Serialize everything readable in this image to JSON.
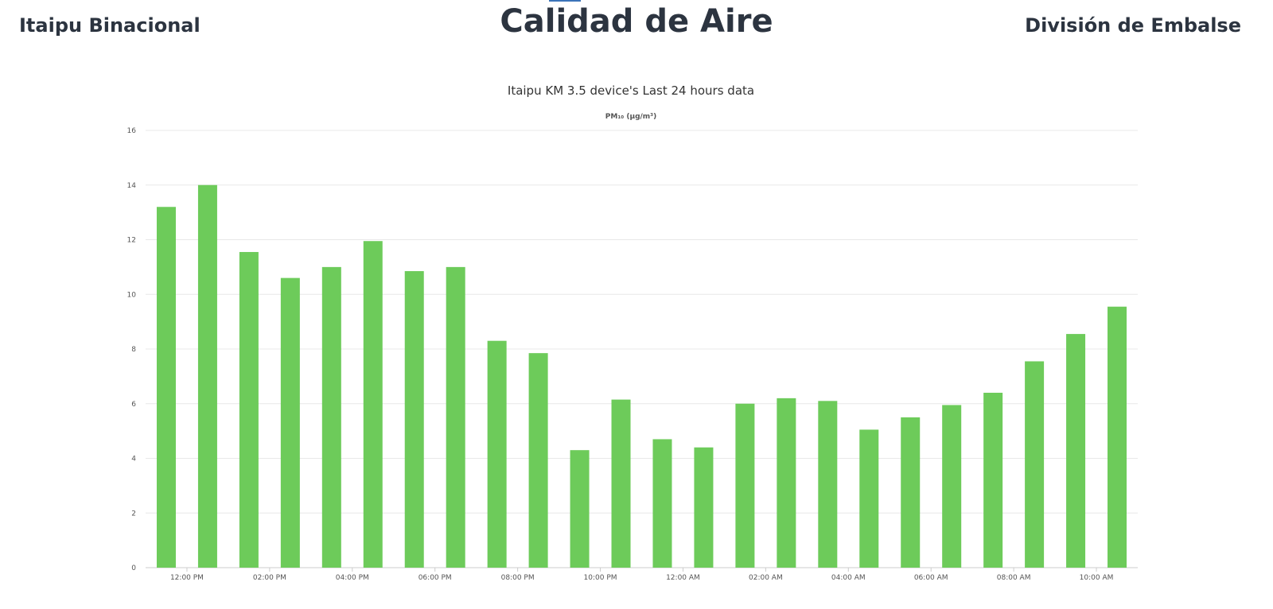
{
  "header": {
    "left_title": "Itaipu Binacional",
    "center_title": "Calidad de Aire",
    "right_title": "División de Embalse"
  },
  "chart_data": {
    "type": "bar",
    "title": "Itaipu KM 3.5 device's Last 24 hours data",
    "subtitle": "PM₁₀ (µg/m³)",
    "ylim": [
      0,
      16
    ],
    "yticks": [
      0,
      2,
      4,
      6,
      8,
      10,
      12,
      14,
      16
    ],
    "grid": true,
    "bar_color": "#6dcb5a",
    "x_tick_labels": [
      "12:00 PM",
      "02:00 PM",
      "04:00 PM",
      "06:00 PM",
      "08:00 PM",
      "10:00 PM",
      "12:00 AM",
      "02:00 AM",
      "04:00 AM",
      "06:00 AM",
      "08:00 AM",
      "10:00 AM"
    ],
    "values": [
      13.2,
      14.0,
      11.55,
      10.6,
      11.0,
      11.95,
      10.85,
      11.0,
      8.3,
      7.85,
      4.3,
      6.15,
      4.7,
      4.4,
      6.0,
      6.2,
      6.1,
      5.05,
      5.5,
      5.95,
      6.4,
      7.55,
      8.55,
      9.55
    ]
  }
}
